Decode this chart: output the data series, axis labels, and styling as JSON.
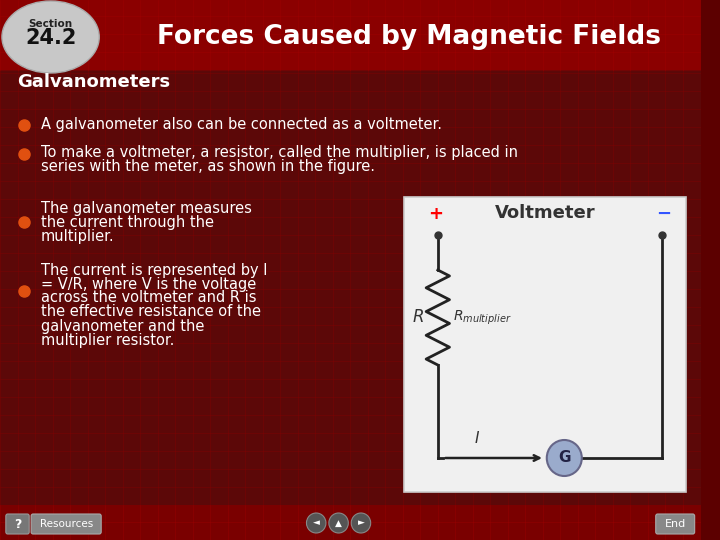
{
  "title": "Forces Caused by Magnetic Fields",
  "subtitle": "Galvanometers",
  "bullet1": "A galvanometer also can be connected as a voltmeter.",
  "bullet2_line1": "To make a voltmeter, a resistor, called the multiplier, is placed in",
  "bullet2_line2": "series with the meter, as shown in the figure.",
  "bullet3_line1": "The galvanometer measures",
  "bullet3_line2": "the current through the",
  "bullet3_line3": "multiplier.",
  "bullet4_line1": "The current is represented by I",
  "bullet4_line2": "= V/R, where V is the voltage",
  "bullet4_line3": "across the voltmeter and R is",
  "bullet4_line4": "the effective resistance of the",
  "bullet4_line5": "galvanometer and the",
  "bullet4_line6": "multiplier resistor.",
  "diagram_title": "Voltmeter",
  "bg_dark": "#5c0000",
  "bg_body": "#6b0000",
  "header_red": "#8b0000",
  "header_dark_red": "#700000",
  "text_white": "#ffffff",
  "bullet_orange": "#e05010",
  "section_bg": "#c8c8c8",
  "diagram_bg": "#f0f0f0",
  "footer_red": "#7a0000",
  "grid_color": "#aa0000"
}
